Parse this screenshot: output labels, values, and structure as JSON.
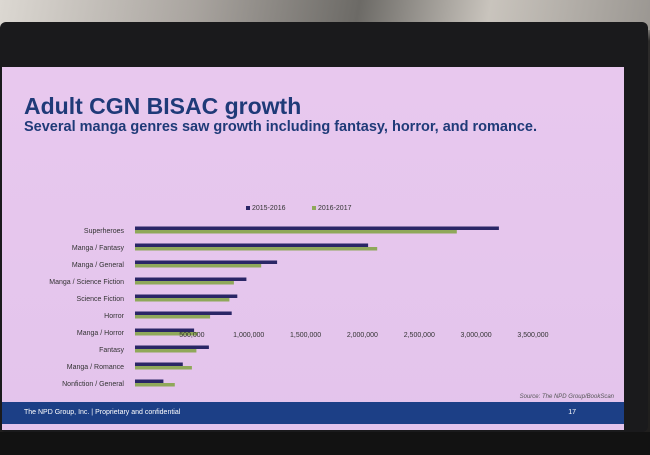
{
  "slide": {
    "title": "Adult CGN BISAC growth",
    "subtitle": "Several manga genres saw growth including fantasy, horror, and romance.",
    "footer_left": "The NPD Group, Inc.  |  Proprietary and confidential",
    "page_number": "17"
  },
  "colors": {
    "series_2015_2016": "#2a2666",
    "series_2016_2017": "#8fa85a",
    "title": "#1f3a78",
    "footer_bar": "#1c3f86"
  },
  "chart_data": {
    "type": "bar",
    "orientation": "horizontal",
    "categories": [
      "Superheroes",
      "Manga / Fantasy",
      "Manga / General",
      "Manga / Science Fiction",
      "Science Fiction",
      "Horror",
      "Manga / Horror",
      "Fantasy",
      "Manga / Romance",
      "Nonfiction / General"
    ],
    "series": [
      {
        "name": "2015-2016",
        "values": [
          3200000,
          2050000,
          1250000,
          980000,
          900000,
          850000,
          520000,
          650000,
          420000,
          250000
        ]
      },
      {
        "name": "2016-2017",
        "values": [
          2830000,
          2130000,
          1110000,
          870000,
          830000,
          660000,
          550000,
          540000,
          500000,
          350000
        ]
      }
    ],
    "x_ticks": [
      "500,000",
      "1,000,000",
      "1,500,000",
      "2,000,000",
      "2,500,000",
      "3,000,000",
      "3,500,000"
    ],
    "x_tick_values": [
      500000,
      1000000,
      1500000,
      2000000,
      2500000,
      3000000,
      3500000
    ],
    "xlim": [
      0,
      3500000
    ],
    "legend_position": "top-center",
    "grid": false,
    "source": "Source: The NPD Group/BookScan"
  }
}
